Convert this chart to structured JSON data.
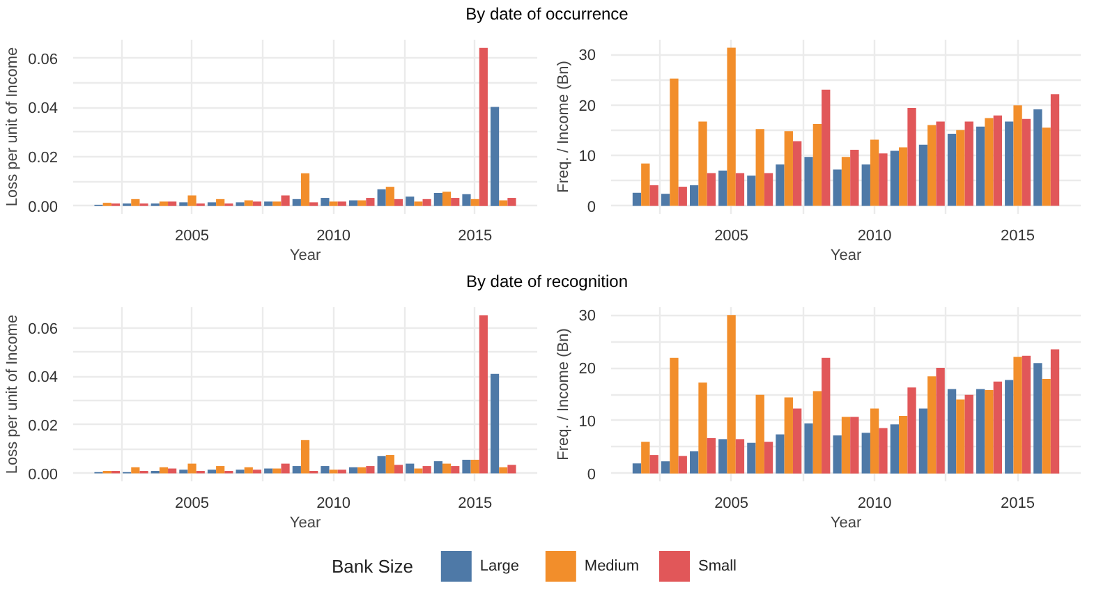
{
  "chart_data": [
    {
      "type": "bar",
      "title": "By date of occurrence",
      "xlabel": "Year",
      "ylabel": "Loss per unit of Income",
      "x": [
        2002,
        2003,
        2004,
        2005,
        2006,
        2007,
        2008,
        2009,
        2010,
        2011,
        2012,
        2013,
        2014,
        2015,
        2016
      ],
      "series": [
        {
          "color": "#4e79a7",
          "values": [
            0.0005,
            0.001,
            0.001,
            0.0015,
            0.0015,
            0.0015,
            0.0018,
            0.0028,
            0.0033,
            0.0023,
            0.0068,
            0.0038,
            0.0053,
            0.0048,
            0.0403
          ]
        },
        {
          "color": "#f28e2b",
          "values": [
            0.0013,
            0.0028,
            0.0018,
            0.0043,
            0.0028,
            0.0023,
            0.0018,
            0.0133,
            0.0018,
            0.0023,
            0.0078,
            0.0018,
            0.0058,
            0.0028,
            0.0023
          ]
        },
        {
          "color": "#e15759",
          "values": [
            0.001,
            0.001,
            0.0018,
            0.001,
            0.001,
            0.0018,
            0.0043,
            0.0015,
            0.0018,
            0.0033,
            0.0028,
            0.0028,
            0.0033,
            0.0643,
            0.0033
          ]
        }
      ],
      "xlim": [
        2000.8,
        2017.2
      ],
      "ylim": [
        -0.0032,
        0.0676
      ],
      "xticks": [
        {
          "value": 2002.5,
          "label": null
        },
        2005,
        {
          "value": 2007.5,
          "label": null
        },
        2010,
        {
          "value": 2012.5,
          "label": null
        },
        2015
      ],
      "yticks": [
        {
          "value": 0,
          "label": "0.00"
        },
        {
          "value": 0.01,
          "label": null
        },
        {
          "value": 0.02,
          "label": "0.02"
        },
        {
          "value": 0.03,
          "label": null
        },
        {
          "value": 0.04,
          "label": "0.04"
        },
        {
          "value": 0.05,
          "label": null
        },
        {
          "value": 0.06,
          "label": "0.06"
        }
      ],
      "grid": true
    },
    {
      "type": "bar",
      "xlabel": "Year",
      "ylabel": "Freq. / Income (Bn)",
      "x": [
        2002,
        2003,
        2004,
        2005,
        2006,
        2007,
        2008,
        2009,
        2010,
        2011,
        2012,
        2013,
        2014,
        2015,
        2016
      ],
      "series": [
        {
          "color": "#4e79a7",
          "values": [
            2.6,
            2.4,
            4.1,
            7.0,
            6.0,
            8.2,
            9.7,
            7.2,
            8.2,
            10.9,
            12.1,
            14.3,
            15.7,
            16.7,
            19.1
          ]
        },
        {
          "color": "#f28e2b",
          "values": [
            8.4,
            25.2,
            16.7,
            31.3,
            15.2,
            14.8,
            16.2,
            9.7,
            13.1,
            11.6,
            16.0,
            15.0,
            17.4,
            19.9,
            15.5
          ]
        },
        {
          "color": "#e15759",
          "values": [
            4.1,
            3.8,
            6.5,
            6.5,
            6.5,
            12.8,
            23.0,
            11.1,
            10.4,
            19.4,
            16.7,
            16.7,
            17.9,
            17.2,
            22.1
          ]
        }
      ],
      "xlim": [
        2000.8,
        2017.2
      ],
      "ylim": [
        -1.57,
        32.9
      ],
      "xticks": [
        {
          "value": 2002.5,
          "label": null
        },
        2005,
        {
          "value": 2007.5,
          "label": null
        },
        2010,
        {
          "value": 2012.5,
          "label": null
        },
        2015
      ],
      "yticks": [
        0,
        {
          "value": 5,
          "label": null
        },
        10,
        {
          "value": 15,
          "label": null
        },
        20,
        {
          "value": 25,
          "label": null
        },
        30
      ],
      "grid": true
    },
    {
      "type": "bar",
      "title": "By date of recognition",
      "xlabel": "Year",
      "ylabel": "Loss per unit of Income",
      "x": [
        2002,
        2003,
        2004,
        2005,
        2006,
        2007,
        2008,
        2009,
        2010,
        2011,
        2012,
        2013,
        2014,
        2015,
        2016
      ],
      "series": [
        {
          "color": "#4e79a7",
          "values": [
            0.0005,
            0.0005,
            0.001,
            0.0015,
            0.0015,
            0.0015,
            0.002,
            0.003,
            0.003,
            0.0025,
            0.0071,
            0.004,
            0.005,
            0.0056,
            0.041
          ]
        },
        {
          "color": "#f28e2b",
          "values": [
            0.001,
            0.0025,
            0.0025,
            0.004,
            0.003,
            0.0025,
            0.002,
            0.0137,
            0.0015,
            0.0025,
            0.0076,
            0.002,
            0.004,
            0.0056,
            0.0025
          ]
        },
        {
          "color": "#e15759",
          "values": [
            0.001,
            0.001,
            0.002,
            0.001,
            0.001,
            0.0015,
            0.004,
            0.001,
            0.0015,
            0.003,
            0.0035,
            0.003,
            0.003,
            0.0652,
            0.0035
          ]
        }
      ],
      "xlim": [
        2000.8,
        2017.2
      ],
      "ylim": [
        -0.0033,
        0.0685
      ],
      "xticks": [
        {
          "value": 2002.5,
          "label": null
        },
        2005,
        {
          "value": 2007.5,
          "label": null
        },
        2010,
        {
          "value": 2012.5,
          "label": null
        },
        2015
      ],
      "yticks": [
        {
          "value": 0,
          "label": "0.00"
        },
        {
          "value": 0.01,
          "label": null
        },
        {
          "value": 0.02,
          "label": "0.02"
        },
        {
          "value": 0.03,
          "label": null
        },
        {
          "value": 0.04,
          "label": "0.04"
        },
        {
          "value": 0.05,
          "label": null
        },
        {
          "value": 0.06,
          "label": "0.06"
        }
      ],
      "grid": true
    },
    {
      "type": "bar",
      "xlabel": "Year",
      "ylabel": "Freq. / Income (Bn)",
      "legend_title": "Bank Size",
      "legend": "bottom",
      "x": [
        2002,
        2003,
        2004,
        2005,
        2006,
        2007,
        2008,
        2009,
        2010,
        2011,
        2012,
        2013,
        2014,
        2015,
        2016
      ],
      "series": [
        {
          "name": "Large",
          "color": "#4e79a7",
          "values": [
            1.9,
            2.3,
            4.2,
            6.5,
            5.8,
            7.4,
            9.5,
            7.2,
            7.7,
            9.3,
            12.3,
            16.0,
            16.0,
            17.7,
            20.9
          ]
        },
        {
          "name": "Medium",
          "color": "#f28e2b",
          "values": [
            6.0,
            21.9,
            17.2,
            30.0,
            14.9,
            14.4,
            15.6,
            10.7,
            12.3,
            10.9,
            18.4,
            14.0,
            15.8,
            22.1,
            17.9
          ]
        },
        {
          "name": "Small",
          "color": "#e15759",
          "values": [
            3.5,
            3.3,
            6.7,
            6.5,
            6.0,
            12.3,
            21.9,
            10.7,
            8.6,
            16.3,
            20.0,
            14.9,
            17.4,
            22.3,
            23.5
          ]
        }
      ],
      "xlim": [
        2000.8,
        2017.2
      ],
      "ylim": [
        -1.5,
        31.5
      ],
      "xticks": [
        {
          "value": 2002.5,
          "label": null
        },
        2005,
        {
          "value": 2007.5,
          "label": null
        },
        2010,
        {
          "value": 2012.5,
          "label": null
        },
        2015
      ],
      "yticks": [
        0,
        {
          "value": 5,
          "label": null
        },
        10,
        {
          "value": 15,
          "label": null
        },
        20,
        {
          "value": 25,
          "label": null
        },
        30
      ],
      "grid": true
    }
  ]
}
